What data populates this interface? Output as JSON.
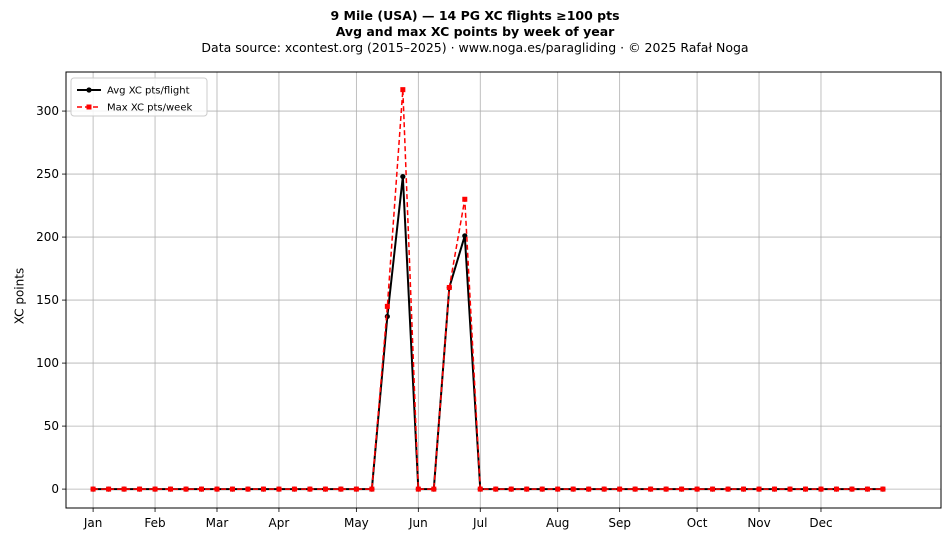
{
  "chart_data": {
    "type": "line",
    "title": "9 Mile (USA)  —  14 PG XC flights ≥100 pts",
    "subtitle": "Avg and max XC points by week of year",
    "source_note": "Data source: xcontest.org (2015–2025)  ·  www.noga.es/paragliding  ·  © 2025 Rafał Noga",
    "xlabel": "",
    "ylabel": "XC points",
    "ylim": [
      -15,
      331
    ],
    "yticks": [
      0,
      50,
      100,
      150,
      200,
      250,
      300
    ],
    "xlim": [
      -1.75,
      54.75
    ],
    "xticks": [
      {
        "week": 0,
        "label": "Jan"
      },
      {
        "week": 4,
        "label": "Feb"
      },
      {
        "week": 8,
        "label": "Mar"
      },
      {
        "week": 12,
        "label": "Apr"
      },
      {
        "week": 17,
        "label": "May"
      },
      {
        "week": 21,
        "label": "Jun"
      },
      {
        "week": 25,
        "label": "Jul"
      },
      {
        "week": 30,
        "label": "Aug"
      },
      {
        "week": 34,
        "label": "Sep"
      },
      {
        "week": 39,
        "label": "Oct"
      },
      {
        "week": 43,
        "label": "Nov"
      },
      {
        "week": 47,
        "label": "Dec"
      }
    ],
    "grid": true,
    "legend_position": "top-left",
    "x": [
      0,
      1,
      2,
      3,
      4,
      5,
      6,
      7,
      8,
      9,
      10,
      11,
      12,
      13,
      14,
      15,
      16,
      17,
      18,
      19,
      20,
      21,
      22,
      23,
      24,
      25,
      26,
      27,
      28,
      29,
      30,
      31,
      32,
      33,
      34,
      35,
      36,
      37,
      38,
      39,
      40,
      41,
      42,
      43,
      44,
      45,
      46,
      47,
      48,
      49,
      50,
      51
    ],
    "series": [
      {
        "name": "Avg XC pts/flight",
        "color": "#000000",
        "style": "solid",
        "marker": "circle",
        "values": [
          0,
          0,
          0,
          0,
          0,
          0,
          0,
          0,
          0,
          0,
          0,
          0,
          0,
          0,
          0,
          0,
          0,
          0,
          0,
          137,
          248,
          0,
          0,
          160,
          201,
          0,
          0,
          0,
          0,
          0,
          0,
          0,
          0,
          0,
          0,
          0,
          0,
          0,
          0,
          0,
          0,
          0,
          0,
          0,
          0,
          0,
          0,
          0,
          0,
          0,
          0,
          0
        ]
      },
      {
        "name": "Max XC pts/week",
        "color": "#ff0000",
        "style": "dashed",
        "marker": "square",
        "values": [
          0,
          0,
          0,
          0,
          0,
          0,
          0,
          0,
          0,
          0,
          0,
          0,
          0,
          0,
          0,
          0,
          0,
          0,
          0,
          145,
          317,
          0,
          0,
          160,
          230,
          0,
          0,
          0,
          0,
          0,
          0,
          0,
          0,
          0,
          0,
          0,
          0,
          0,
          0,
          0,
          0,
          0,
          0,
          0,
          0,
          0,
          0,
          0,
          0,
          0,
          0,
          0
        ]
      }
    ]
  }
}
